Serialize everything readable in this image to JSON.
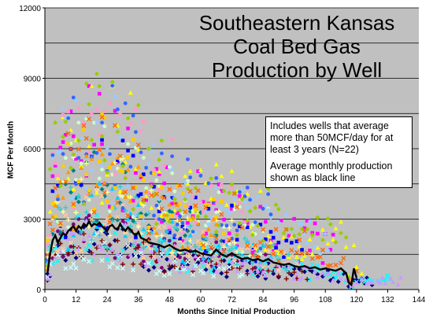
{
  "chart_data": {
    "type": "scatter",
    "title_lines": [
      "Southeastern Kansas",
      "Coal Bed Gas",
      "Production by Well"
    ],
    "annotation": {
      "line1": "Includes wells that average more than 50MCF/day for at least 3 years  (N=22)",
      "line2": "Average monthly production shown as black line"
    },
    "xlabel": "Months Since Initial Production",
    "ylabel": "MCF Per Month",
    "xlim": [
      0,
      144
    ],
    "ylim": [
      0,
      12000
    ],
    "x_ticks": [
      "0",
      "12",
      "24",
      "36",
      "48",
      "60",
      "72",
      "84",
      "96",
      "108",
      "120",
      "132",
      "144"
    ],
    "y_ticks": [
      "0",
      "3000",
      "6000",
      "9000",
      "12000"
    ],
    "grid": true,
    "legend": "none",
    "colors": {
      "plot_bg": "#c0c0c0",
      "grid": "#000000",
      "average_line": "#000000",
      "well_colors": [
        "#00007f",
        "#ff00ff",
        "#ffff00",
        "#00ffff",
        "#7f007f",
        "#7f0000",
        "#008080",
        "#0000ff",
        "#00ccff",
        "#ccffff",
        "#ccffcc",
        "#ffff99",
        "#99ccff",
        "#ff99cc",
        "#cc99ff",
        "#ffcc99",
        "#3366ff",
        "#33cccc",
        "#99cc00",
        "#ffcc00",
        "#ff9900",
        "#ff6600"
      ]
    },
    "series": [
      {
        "name": "Average monthly production",
        "x": [
          1,
          2,
          3,
          4,
          5,
          6,
          7,
          8,
          9,
          10,
          11,
          12,
          13,
          14,
          15,
          16,
          17,
          18,
          19,
          20,
          21,
          22,
          23,
          24,
          25,
          26,
          27,
          28,
          29,
          30,
          31,
          32,
          33,
          34,
          35,
          36,
          37,
          38,
          39,
          40,
          42,
          44,
          46,
          48,
          50,
          52,
          54,
          56,
          58,
          60,
          62,
          64,
          66,
          68,
          70,
          72,
          74,
          76,
          78,
          80,
          82,
          84,
          86,
          88,
          90,
          92,
          94,
          96,
          98,
          100,
          102,
          104,
          106,
          108,
          110,
          112,
          114,
          116,
          117,
          118,
          119,
          120
        ],
        "y": [
          700,
          1500,
          2100,
          2300,
          2000,
          2200,
          2400,
          2300,
          2500,
          2600,
          2700,
          2500,
          2700,
          2600,
          2800,
          2700,
          2900,
          2700,
          2800,
          2750,
          2850,
          2700,
          2600,
          2500,
          2700,
          2750,
          2600,
          2550,
          2800,
          2600,
          2500,
          2650,
          2550,
          2400,
          2300,
          2450,
          2200,
          2150,
          2100,
          2000,
          1950,
          1900,
          1800,
          1900,
          1750,
          1650,
          1700,
          1600,
          1650,
          1550,
          1500,
          1450,
          1700,
          1500,
          1400,
          1550,
          1400,
          1300,
          1350,
          1250,
          1300,
          1200,
          1300,
          1150,
          1100,
          1050,
          1100,
          1000,
          950,
          1000,
          900,
          950,
          850,
          900,
          850,
          800,
          900,
          700,
          300,
          200,
          900,
          500
        ]
      }
    ]
  }
}
